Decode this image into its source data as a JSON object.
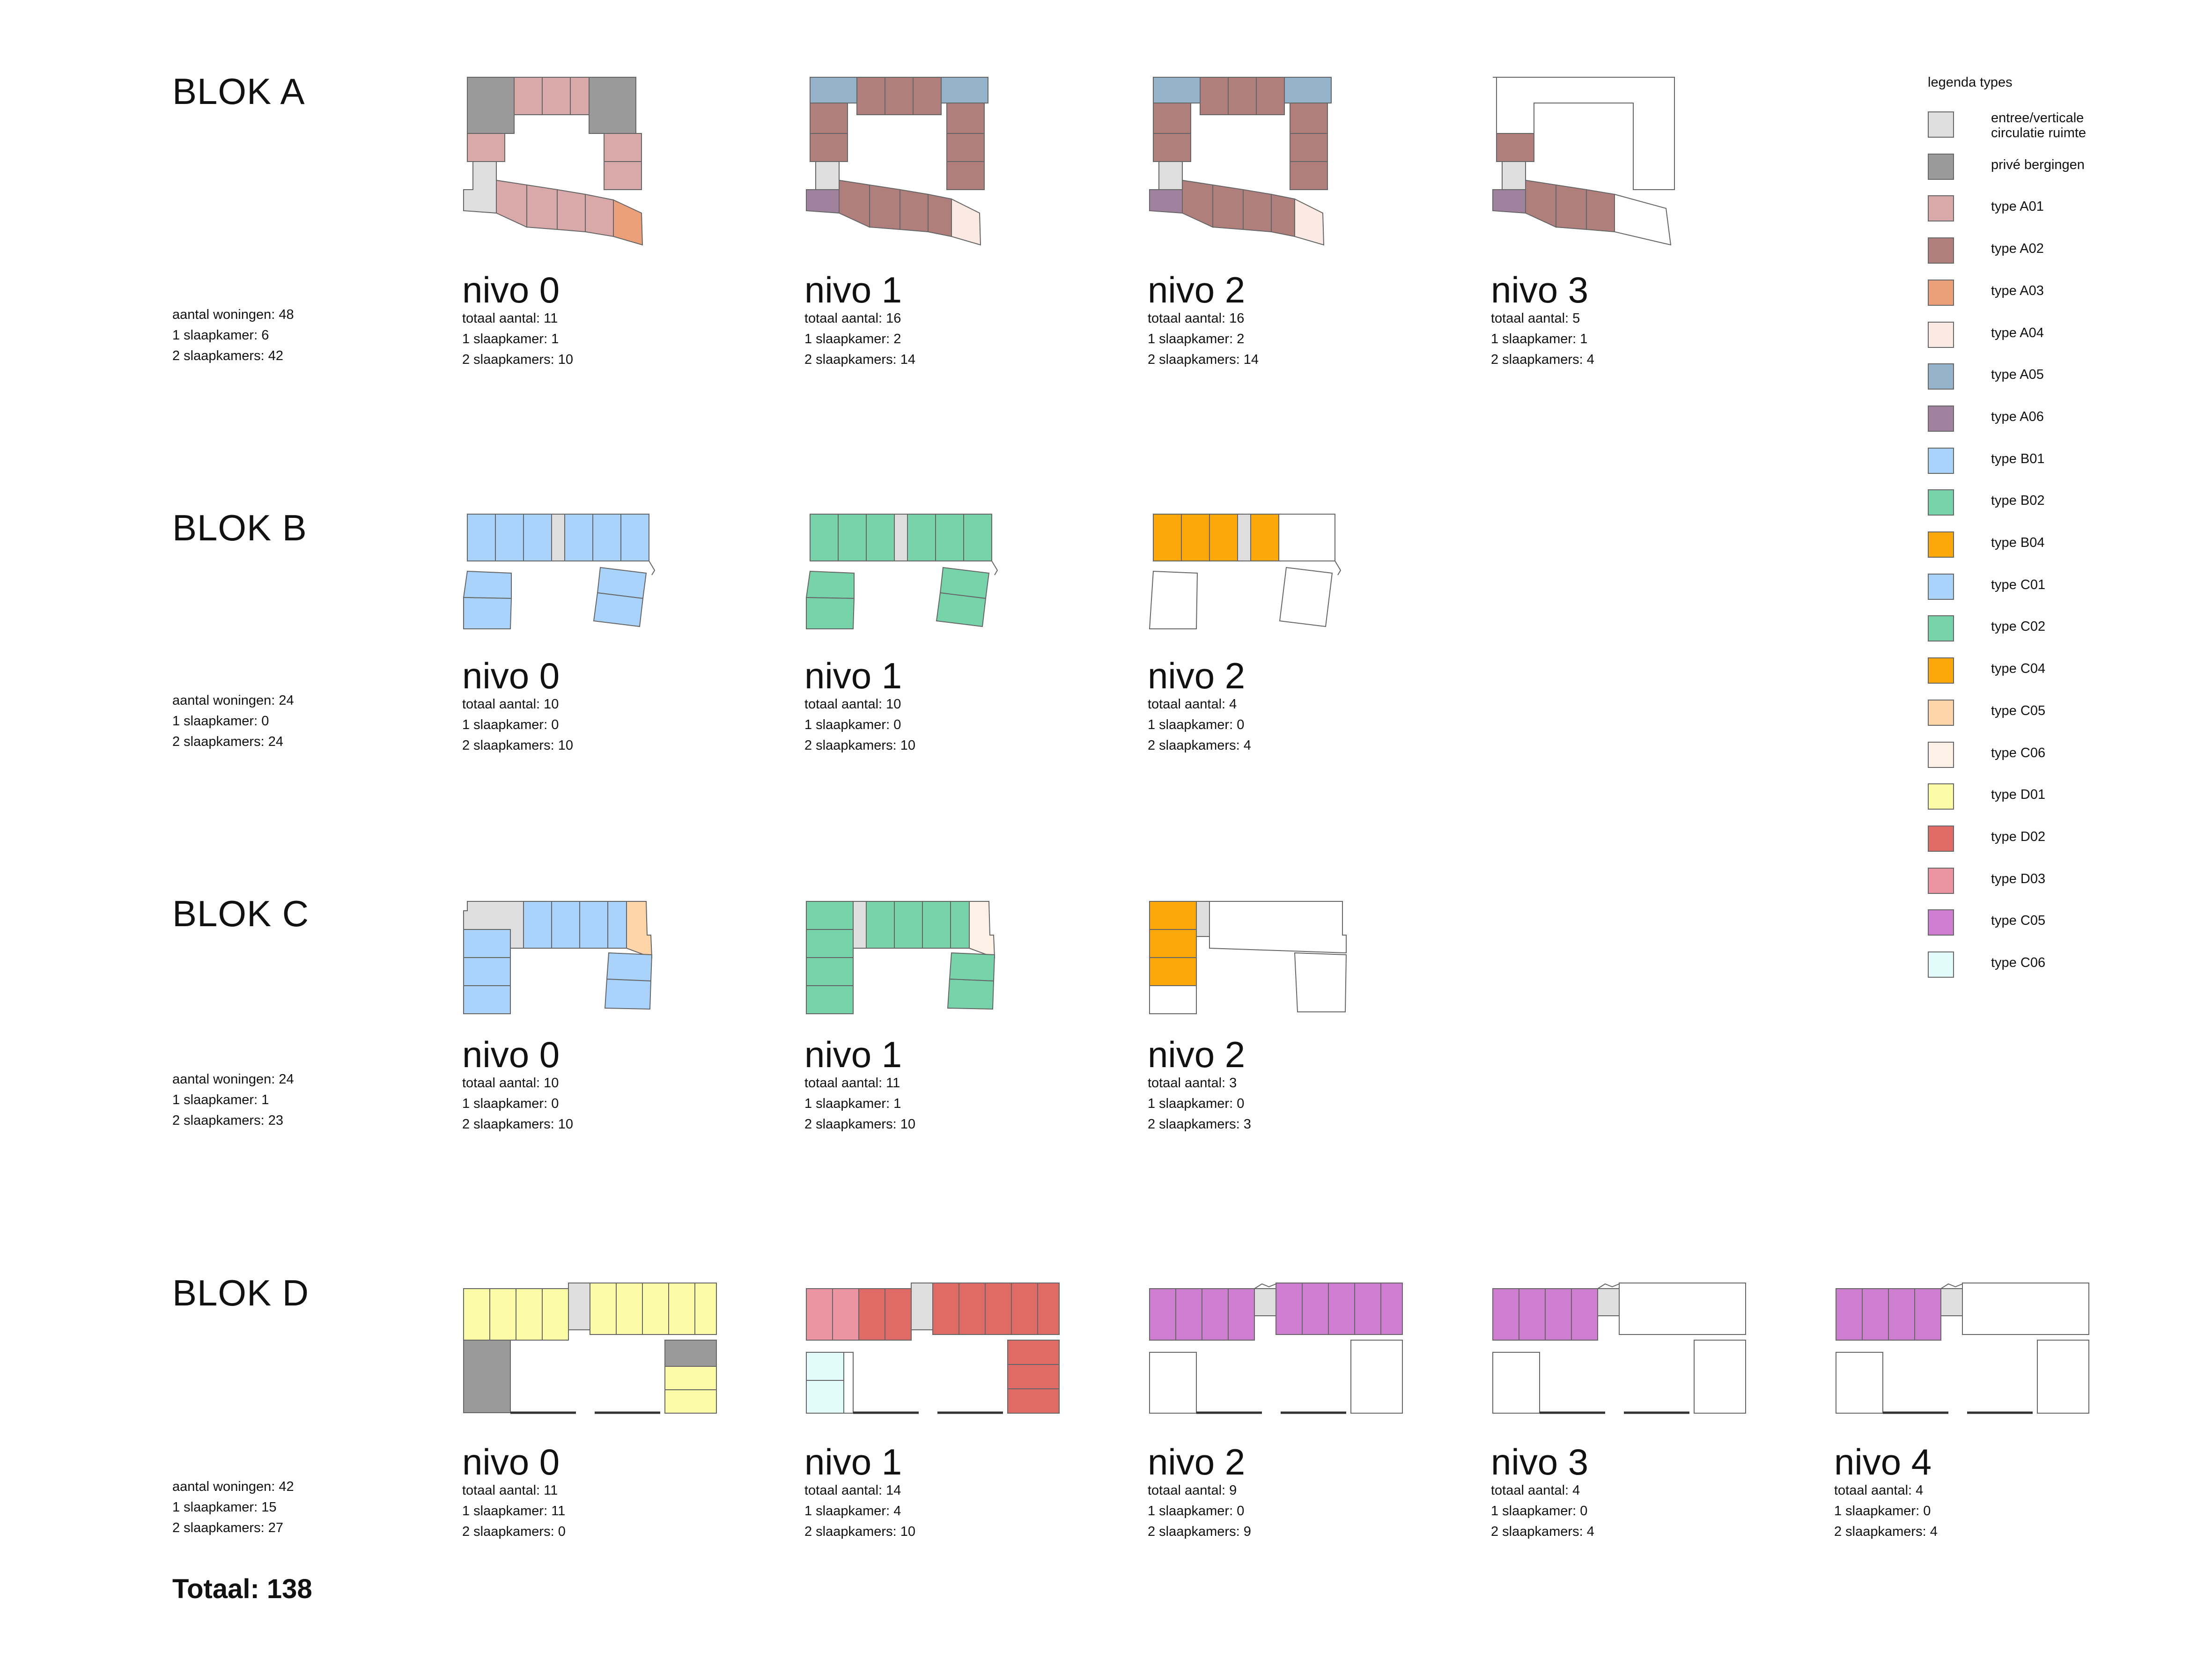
{
  "blocks": [
    {
      "title": "BLOK A",
      "summary": [
        "aantal woningen: 48",
        "1 slaapkamer: 6",
        "2 slaapkamers: 42"
      ],
      "levels": [
        {
          "name": "nivo 0",
          "stats": [
            "totaal aantal: 11",
            "1 slaapkamer: 1",
            "2 slaapkamers: 10"
          ]
        },
        {
          "name": "nivo 1",
          "stats": [
            "totaal aantal: 16",
            "1 slaapkamer: 2",
            "2 slaapkamers: 14"
          ]
        },
        {
          "name": "nivo 2",
          "stats": [
            "totaal aantal: 16",
            "1 slaapkamer: 2",
            "2 slaapkamers: 14"
          ]
        },
        {
          "name": "nivo 3",
          "stats": [
            "totaal aantal: 5",
            "1 slaapkamer: 1",
            "2 slaapkamers: 4"
          ]
        }
      ]
    },
    {
      "title": "BLOK B",
      "summary": [
        "aantal woningen: 24",
        "1 slaapkamer: 0",
        "2 slaapkamers: 24"
      ],
      "levels": [
        {
          "name": "nivo 0",
          "stats": [
            "totaal aantal: 10",
            "1 slaapkamer: 0",
            "2 slaapkamers: 10"
          ]
        },
        {
          "name": "nivo 1",
          "stats": [
            "totaal aantal: 10",
            "1 slaapkamer: 0",
            "2 slaapkamers: 10"
          ]
        },
        {
          "name": "nivo 2",
          "stats": [
            "totaal aantal: 4",
            "1 slaapkamer: 0",
            "2 slaapkamers: 4"
          ]
        }
      ]
    },
    {
      "title": "BLOK C",
      "summary": [
        "aantal woningen: 24",
        "1 slaapkamer: 1",
        "2 slaapkamers: 23"
      ],
      "levels": [
        {
          "name": "nivo 0",
          "stats": [
            "totaal aantal: 10",
            "1 slaapkamer: 0",
            "2 slaapkamers: 10"
          ]
        },
        {
          "name": "nivo 1",
          "stats": [
            "totaal aantal: 11",
            "1 slaapkamer: 1",
            "2 slaapkamers: 10"
          ]
        },
        {
          "name": "nivo 2",
          "stats": [
            "totaal aantal: 3",
            "1 slaapkamer: 0",
            "2 slaapkamers: 3"
          ]
        }
      ]
    },
    {
      "title": "BLOK D",
      "summary": [
        "aantal woningen: 42",
        "1 slaapkamer: 15",
        "2 slaapkamers: 27"
      ],
      "levels": [
        {
          "name": "nivo 0",
          "stats": [
            "totaal aantal: 11",
            "1 slaapkamer: 11",
            "2 slaapkamers: 0"
          ]
        },
        {
          "name": "nivo 1",
          "stats": [
            "totaal aantal: 14",
            "1 slaapkamer: 4",
            "2 slaapkamers: 10"
          ]
        },
        {
          "name": "nivo 2",
          "stats": [
            "totaal aantal: 9",
            "1 slaapkamer: 0",
            "2 slaapkamers: 9"
          ]
        },
        {
          "name": "nivo 3",
          "stats": [
            "totaal aantal: 4",
            "1 slaapkamer: 0",
            "2 slaapkamers: 4"
          ]
        },
        {
          "name": "nivo 4",
          "stats": [
            "totaal aantal: 4",
            "1 slaapkamer: 0",
            "2 slaapkamers: 4"
          ]
        }
      ]
    }
  ],
  "legend": {
    "title": "legenda types",
    "items": [
      {
        "label": "entree/verticale\ncirculatie ruimte",
        "color": "#dedede"
      },
      {
        "label": "privé bergingen",
        "color": "#9a9a9a"
      },
      {
        "label": "type A01",
        "color": "#d9a9a9"
      },
      {
        "label": "type A02",
        "color": "#b07e7b"
      },
      {
        "label": "type A03",
        "color": "#eca07a"
      },
      {
        "label": "type A04",
        "color": "#fbeae3"
      },
      {
        "label": "type A05",
        "color": "#96b3cc"
      },
      {
        "label": "type A06",
        "color": "#a0829f"
      },
      {
        "label": "type B01",
        "color": "#a9d3fa"
      },
      {
        "label": "type B02",
        "color": "#77d3aa"
      },
      {
        "label": "type B04",
        "color": "#fca80a"
      },
      {
        "label": "type C01",
        "color": "#a9d3fa"
      },
      {
        "label": "type C02",
        "color": "#77d3aa"
      },
      {
        "label": "type C04",
        "color": "#fca80a"
      },
      {
        "label": "type C05",
        "color": "#fed4a9"
      },
      {
        "label": "type C06",
        "color": "#fdf0e6"
      },
      {
        "label": "type D01",
        "color": "#fdfca6"
      },
      {
        "label": "type D02",
        "color": "#e06b66"
      },
      {
        "label": "type D03",
        "color": "#ec94a1"
      },
      {
        "label": "type C05",
        "color": "#cf7dd0"
      },
      {
        "label": "type C06",
        "color": "#e2fbfb"
      }
    ]
  },
  "total": "Totaal: 138"
}
